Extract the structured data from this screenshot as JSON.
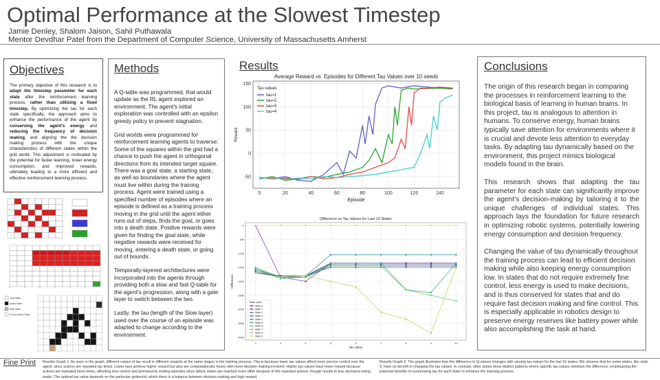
{
  "header": {
    "title": "Optimal Performance at the Slowest Timestep",
    "authors": "Jamie Denley, Shalom Jaison, Sahil Puthawala",
    "mentor": "Mentor Devdhar Patel from the Department of Computer Science, University of Massachusetts Amherst"
  },
  "objectives": {
    "heading": "Objectives",
    "text_1": "The primary objective of this research is to ",
    "bold_1": "adapt the timestep parameter for each state",
    "text_2": " after the reinforcement learning process, ",
    "bold_2": "rather than utilizing a fixed timestep.",
    "text_3": " By optimizing the tau for each state specifically, the approach aims to enhance the performance of the agent by ",
    "bold_3": "conserving the agent's energy",
    "text_4": " and ",
    "bold_4": "reducing the frequency of decision making",
    "text_5": ", and aligning the the decision making process with the unique characteristics of different states within the grid world. This adjustment is motivated by the potential for faster learning, lower energy consumption, and improved rewards, ultimately leading to a more efficient and effective reinforcement learning process."
  },
  "methods": {
    "heading": "Methods",
    "p1": "A Q-table was programmed, that would update as the RL agent explored an environment. The agent's initial exploration was controlled with an epsilon greedy policy to prevent stagnation.",
    "p2": "Grid worlds were programmed for reinforcement learning agents to traverse. Some of the squares within the grid had a chance to push the agent in orthogonal directions from its intended target square. There was a goal state, a starting state, as well as boundaries where the agent must live within during the training process. Agent were trained using a specified number of episodes where an episode is defined as a training process moving in the grid until the agent either runs out of steps, finds the goal, or goes into a death state. Positive rewards were given for finding the goal state, while negative rewards were received for moving, entering a death state, or going out of bounds.",
    "p3": "Temporally-layered architectures were incorporated into the agents through providing both a slow and fast Q-table for the agent's progression, along with a gate layer to switch between the two.",
    "p4": "Lastly, the tau (length of the Slow layer) used over the course of an episode was adapted to change according to the environment."
  },
  "results": {
    "heading": "Results"
  },
  "conclusions": {
    "heading": "Conclusions",
    "p1": "The origin of this research began in comparing the processes in reinforcement learning to the biological basis of learning in human brains. In this project, tau is analogous to attention in humans. To conserve energy, human brains typically save attention for environments where it is crucial and devote less attention to everyday tasks. By adapting tau dynamically based on the environment, this project mimics biological models found in the brain.",
    "p2": "This research shows that adapting the tau parameter for each state can significantly improve the agent's decision-making by tailoring it to the unique challenges of individual states. This approach lays the foundation for future research in optimizing robotic systems, potentially lowering energy consumption and decision frequency.",
    "p3": "Changing the value of tau dynamically throughout the training process can lead to efficient decision making while also keeping energy consumption low. In states that do not require extremely fine control, less energy is used to make decisions, and is thus conserved for states that and do require fast decision making and fine control. This is especially applicable in robotics design to preserve energy reserves like battery power while also accomplishing the task at hand."
  },
  "fine_print": {
    "label": "Fine Print",
    "graph1": "Results Graph 1: As seen in the graph, different values of tau result in different rewards at the same stages in the training process. This is because lower tau values afford more precise control over the agent, since actions are repeated tau times. Lower taus achieve higher reward but also are computationally heavy with more decision making involved. Higher tau values have lower reward because actions are repeated more times, affording less control and prematurely ending episodes since failure states are reached more often because of the repeated actions, though results in less decisions being made. The optimal tau value depends on the particular gridworld, which there is a balance between decision making and high reward.",
    "graph2": "Results Graph 2: The graph illustrates how the difference in Q-values changes with varying tau values for the last 10 states. We observe that for some states, like state 9, have no benefit in changing the tau values. In contrast, other states show distinct patterns where specific tau values minimize the difference, emphasizing the potential benefits of customizing tau for each state to enhance the learning process."
  },
  "grid_legends": {
    "grid1": [
      "",
      "",
      "",
      ""
    ],
    "grid3": [
      "Goal State",
      "Death State",
      "Start State",
      "Forced action State"
    ]
  },
  "chart_data": [
    {
      "type": "line",
      "title": "Average Reward vs. Episodes for Different Tau Values over 10 seeds",
      "xlabel": "Episode",
      "ylabel": "Reward",
      "xlim": [
        -5,
        155
      ],
      "ylim": [
        -75,
        155
      ],
      "xticks": [
        0,
        20,
        40,
        60,
        80,
        100,
        120,
        140
      ],
      "yticks": [
        -50,
        0,
        50,
        100,
        150
      ],
      "legend_title": "Tau values",
      "legend_position": "top-left",
      "grid": true,
      "series": [
        {
          "name": "tau=1",
          "color": "#5b5fc7",
          "points": [
            [
              0,
              -52
            ],
            [
              10,
              -55
            ],
            [
              20,
              -50
            ],
            [
              30,
              -58
            ],
            [
              40,
              -60
            ],
            [
              50,
              -45
            ],
            [
              60,
              -20
            ],
            [
              65,
              -45
            ],
            [
              70,
              5
            ],
            [
              75,
              -10
            ],
            [
              80,
              60
            ],
            [
              82,
              20
            ],
            [
              85,
              80
            ],
            [
              88,
              40
            ],
            [
              90,
              105
            ],
            [
              95,
              140
            ],
            [
              100,
              145
            ],
            [
              110,
              140
            ],
            [
              120,
              145
            ],
            [
              140,
              140
            ],
            [
              150,
              138
            ]
          ]
        },
        {
          "name": "tau=2",
          "color": "#2ca02c",
          "points": [
            [
              0,
              -55
            ],
            [
              10,
              -50
            ],
            [
              20,
              -58
            ],
            [
              30,
              -55
            ],
            [
              40,
              -50
            ],
            [
              50,
              -52
            ],
            [
              60,
              -45
            ],
            [
              70,
              -40
            ],
            [
              80,
              -30
            ],
            [
              85,
              -15
            ],
            [
              90,
              10
            ],
            [
              95,
              -20
            ],
            [
              100,
              40
            ],
            [
              103,
              20
            ],
            [
              105,
              100
            ],
            [
              107,
              60
            ],
            [
              110,
              135
            ],
            [
              115,
              140
            ],
            [
              120,
              138
            ],
            [
              140,
              140
            ],
            [
              150,
              138
            ]
          ]
        },
        {
          "name": "tau=3",
          "color": "#e04a4a",
          "points": [
            [
              0,
              -52
            ],
            [
              10,
              -55
            ],
            [
              20,
              -53
            ],
            [
              30,
              -56
            ],
            [
              40,
              -50
            ],
            [
              50,
              -55
            ],
            [
              60,
              -52
            ],
            [
              70,
              -45
            ],
            [
              80,
              -40
            ],
            [
              90,
              -30
            ],
            [
              100,
              -20
            ],
            [
              105,
              -10
            ],
            [
              110,
              30
            ],
            [
              113,
              10
            ],
            [
              116,
              100
            ],
            [
              118,
              60
            ],
            [
              120,
              130
            ],
            [
              125,
              140
            ],
            [
              130,
              140
            ],
            [
              140,
              142
            ],
            [
              150,
              140
            ]
          ]
        },
        {
          "name": "tau=4",
          "color": "#40d0c8",
          "points": [
            [
              0,
              -55
            ],
            [
              10,
              -52
            ],
            [
              20,
              -56
            ],
            [
              30,
              -53
            ],
            [
              40,
              -55
            ],
            [
              50,
              -50
            ],
            [
              60,
              -52
            ],
            [
              70,
              -50
            ],
            [
              80,
              -48
            ],
            [
              90,
              -45
            ],
            [
              100,
              -40
            ],
            [
              110,
              -35
            ],
            [
              120,
              -30
            ],
            [
              125,
              0
            ],
            [
              130,
              40
            ],
            [
              132,
              10
            ],
            [
              135,
              80
            ],
            [
              138,
              50
            ],
            [
              140,
              110
            ],
            [
              145,
              120
            ],
            [
              150,
              125
            ]
          ]
        }
      ]
    },
    {
      "type": "line",
      "title": "Difference vs Tau Values for Last 10 States",
      "xlabel": "Tau Value",
      "ylabel": "Difference",
      "xlim": [
        1.6,
        10.4
      ],
      "ylim": [
        -4100,
        100
      ],
      "x": [
        2,
        3,
        4,
        5,
        6,
        7,
        8,
        9,
        10
      ],
      "yticks": [
        0,
        -500,
        -1000,
        -1500,
        -2000,
        -2500,
        -3000,
        -3500,
        -4000
      ],
      "legend_title": "State Index",
      "legend_position": "bottom-left",
      "grid": true,
      "series": [
        {
          "name": "State 0",
          "color": "#3b1e5c",
          "values": [
            -1700,
            -1800,
            -1800,
            -1350,
            -1350,
            -1350,
            -1350,
            -1350,
            -1350
          ]
        },
        {
          "name": "State 1",
          "color": "#5a2f87",
          "values": [
            0,
            -1850,
            -2000,
            -1350,
            -1350,
            -1350,
            -1350,
            -1350,
            -1350
          ]
        },
        {
          "name": "State 2",
          "color": "#47408f",
          "values": [
            -1700,
            -1800,
            -1800,
            -1400,
            -1400,
            -1400,
            -1400,
            -1400,
            -1400
          ]
        },
        {
          "name": "State 3",
          "color": "#3a5a94",
          "values": [
            -1650,
            -1850,
            -1850,
            -1450,
            -1450,
            -1450,
            -1450,
            -1450,
            -1450
          ]
        },
        {
          "name": "State 4",
          "color": "#2e7190",
          "values": [
            -1600,
            -1850,
            -1800,
            -1500,
            -1500,
            -1500,
            -1500,
            -1500,
            -1500
          ]
        },
        {
          "name": "State 5",
          "color": "#23888c",
          "values": [
            -1550,
            -1850,
            -1800,
            -1050,
            -1050,
            -1050,
            -1050,
            -1050,
            -1050
          ]
        },
        {
          "name": "State 6",
          "color": "#2ea581",
          "values": [
            -1550,
            -1900,
            -1850,
            -1350,
            -1350,
            -1350,
            -2300,
            -2400,
            -1350
          ]
        },
        {
          "name": "State 7",
          "color": "#5ec05f",
          "values": [
            -1500,
            -1850,
            -1800,
            -1450,
            -1450,
            -1450,
            -2300,
            -2500,
            -2700
          ]
        },
        {
          "name": "State 8",
          "color": "#a7d242",
          "values": [
            -1700,
            -1850,
            -1800,
            -2000,
            -2200,
            -3100,
            -3350,
            -3850,
            -1500
          ]
        },
        {
          "name": "State 9",
          "color": "#e0cf2e",
          "values": [
            0,
            0,
            0,
            0,
            0,
            0,
            0,
            0,
            0
          ]
        }
      ]
    }
  ]
}
